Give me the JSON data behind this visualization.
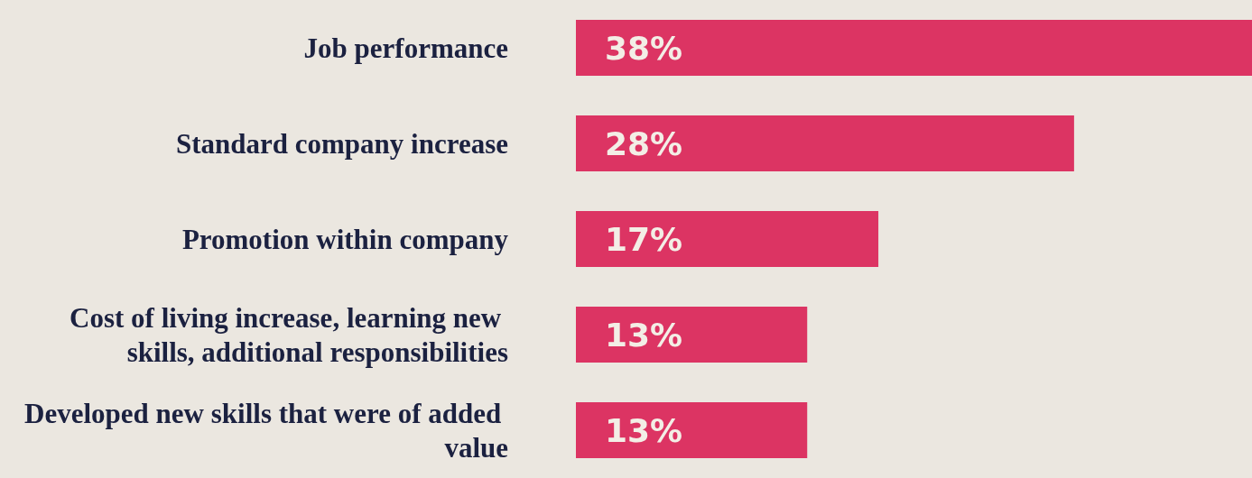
{
  "chart_data": {
    "type": "bar",
    "orientation": "horizontal",
    "categories": [
      "Job performance",
      "Standard company increase",
      "Promotion within company",
      "Cost of living increase, learning new skills, additional responsibilities",
      "Developed new skills that were of added value"
    ],
    "values": [
      38,
      28,
      17,
      13,
      13
    ],
    "value_labels": [
      "38%",
      "28%",
      "17%",
      "13%",
      "13%"
    ],
    "color": "#dc3463"
  }
}
